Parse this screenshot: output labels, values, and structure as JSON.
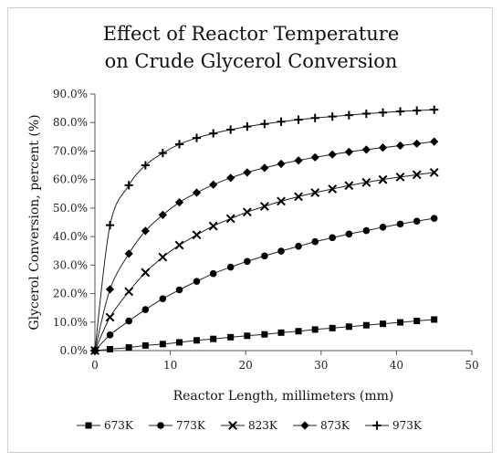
{
  "chart_data": {
    "type": "line",
    "title_line1": "Effect of Reactor Temperature",
    "title_line2": "on Crude Glycerol Conversion",
    "xlabel": "Reactor Length, millimeters (mm)",
    "ylabel": "Glycerol Conversion, percent (%)",
    "xlim": [
      0,
      50
    ],
    "ylim": [
      0,
      90
    ],
    "x_ticks": [
      "0",
      "10",
      "20",
      "30",
      "40",
      "50"
    ],
    "y_ticks": [
      "0.0%",
      "10.0%",
      "20.0%",
      "30.0%",
      "40.0%",
      "50.0%",
      "60.0%",
      "70.0%",
      "80.0%",
      "90.0%"
    ],
    "grid": false,
    "legend_position": "bottom",
    "x": [
      0,
      2,
      4.5,
      6.7,
      9,
      11.2,
      13.5,
      15.7,
      18,
      20.2,
      22.5,
      24.7,
      27,
      29.2,
      31.5,
      33.7,
      36,
      38.2,
      40.5,
      42.7,
      45
    ],
    "series": [
      {
        "name": "673K",
        "marker": "square",
        "values": [
          0,
          0.5,
          1.1,
          1.8,
          2.3,
          2.9,
          3.6,
          4.1,
          4.7,
          5.2,
          5.7,
          6.3,
          6.8,
          7.4,
          7.9,
          8.4,
          8.9,
          9.4,
          9.9,
          10.4,
          10.9
        ]
      },
      {
        "name": "773K",
        "marker": "circle",
        "values": [
          0,
          5.5,
          10.4,
          14.4,
          18.2,
          21.3,
          24.3,
          27.0,
          29.3,
          31.3,
          33.2,
          34.9,
          36.6,
          38.2,
          39.6,
          40.9,
          42.1,
          43.3,
          44.4,
          45.4,
          46.4
        ]
      },
      {
        "name": "823K",
        "marker": "x",
        "values": [
          0,
          11.7,
          20.7,
          27.4,
          32.8,
          37.0,
          40.6,
          43.7,
          46.3,
          48.6,
          50.6,
          52.4,
          54.0,
          55.4,
          56.7,
          57.9,
          59.0,
          60.0,
          60.9,
          61.7,
          62.5
        ]
      },
      {
        "name": "873K",
        "marker": "diamond",
        "values": [
          0,
          21.5,
          34.0,
          42.0,
          47.6,
          52.0,
          55.4,
          58.2,
          60.6,
          62.5,
          64.1,
          65.5,
          66.7,
          67.8,
          68.8,
          69.7,
          70.5,
          71.2,
          71.9,
          72.6,
          73.3
        ]
      },
      {
        "name": "973K",
        "marker": "plus",
        "values": [
          0,
          44.0,
          58.0,
          65.0,
          69.3,
          72.4,
          74.6,
          76.2,
          77.5,
          78.6,
          79.5,
          80.3,
          81.0,
          81.6,
          82.1,
          82.6,
          83.1,
          83.5,
          83.9,
          84.2,
          84.5
        ]
      }
    ]
  }
}
